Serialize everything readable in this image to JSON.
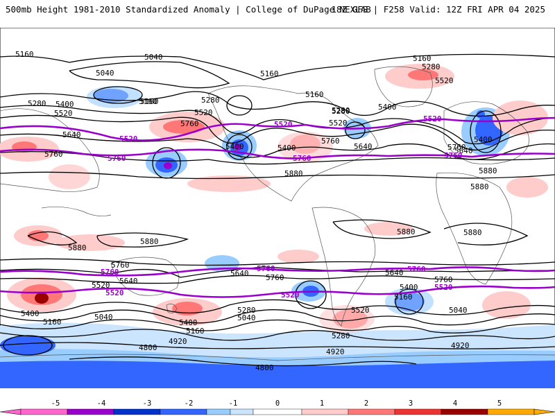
{
  "header": {
    "title_left": "500mb Height 1981-2010 Standardized Anomaly | College of DuPage NEXLAB",
    "title_right": "18Z GFS | F258 Valid: 12Z FRI APR 04 2025"
  },
  "colors": {
    "neg5": "#ff66cc",
    "neg4": "#9900cc",
    "neg3": "#0033cc",
    "neg2": "#3366ff",
    "neg1a": "#99ccff",
    "neg1b": "#cce5ff",
    "pos1": "#ffcccc",
    "pos2": "#ff7777",
    "pos3": "#ee3333",
    "pos4": "#990000",
    "pos5": "#ffaa00",
    "contour": "#000000",
    "highlight_contour": "#9900cc",
    "coast": "#666666"
  },
  "colorbar": {
    "ticks": [
      "-5",
      "-4",
      "-3",
      "-2",
      "-1",
      "0",
      "1",
      "2",
      "3",
      "4",
      "5"
    ]
  },
  "contour_labels": [
    {
      "id": "nh-5160-a",
      "text": "5160"
    },
    {
      "id": "nh-5040-a",
      "text": "5040"
    },
    {
      "id": "nh-5040-b",
      "text": "5040"
    },
    {
      "id": "nh-5160-b",
      "text": "5160"
    },
    {
      "id": "nh-5160-c",
      "text": "5160"
    },
    {
      "id": "nh-5280-a",
      "text": "5280"
    },
    {
      "id": "nh-5400-a",
      "text": "5400"
    },
    {
      "id": "nh-5520-a",
      "text": "5520"
    },
    {
      "id": "nh-5640-a",
      "text": "5640"
    },
    {
      "id": "nh-5760-a",
      "text": "5760"
    },
    {
      "id": "nh-5160-d",
      "text": "5160"
    },
    {
      "id": "nh-5280-b",
      "text": "5280"
    },
    {
      "id": "nh-5520-b",
      "text": "5520"
    },
    {
      "id": "nh-5760-b",
      "text": "5760"
    },
    {
      "id": "nh-5400-b",
      "text": "5400"
    },
    {
      "id": "nh-5280-c",
      "text": "5280"
    },
    {
      "id": "nh-5160-e",
      "text": "5160"
    },
    {
      "id": "nh-5280-d",
      "text": "5280"
    },
    {
      "id": "nh-5520-c",
      "text": "5520"
    },
    {
      "id": "nh-5400-c",
      "text": "5400"
    },
    {
      "id": "nh-5760-c",
      "text": "5760"
    },
    {
      "id": "nh-5640-b",
      "text": "5640"
    },
    {
      "id": "nh-5880-a",
      "text": "5880"
    },
    {
      "id": "nh-5160-f",
      "text": "5160"
    },
    {
      "id": "nh-5280-e",
      "text": "5280"
    },
    {
      "id": "nh-5520-d",
      "text": "5520"
    },
    {
      "id": "nh-5400-d",
      "text": "5400"
    },
    {
      "id": "nh-5400-e",
      "text": "5400"
    },
    {
      "id": "nh-5760-d",
      "text": "5760"
    },
    {
      "id": "nh-5640-c",
      "text": "5640"
    },
    {
      "id": "nh-5880-b",
      "text": "5880"
    },
    {
      "id": "nh-5880-c",
      "text": "5880"
    },
    {
      "id": "eq-5880-a",
      "text": "5880"
    },
    {
      "id": "eq-5880-b",
      "text": "5880"
    },
    {
      "id": "eq-5880-c",
      "text": "5880"
    },
    {
      "id": "eq-5880-d",
      "text": "5880"
    },
    {
      "id": "sh-5760-a",
      "text": "5760"
    },
    {
      "id": "sh-5640-a",
      "text": "5640"
    },
    {
      "id": "sh-5520-a",
      "text": "5520"
    },
    {
      "id": "sh-5400-a",
      "text": "5400"
    },
    {
      "id": "sh-5160-a",
      "text": "5160"
    },
    {
      "id": "sh-5040-a",
      "text": "5040"
    },
    {
      "id": "sh-5400-b",
      "text": "5400"
    },
    {
      "id": "sh-5160-b",
      "text": "5160"
    },
    {
      "id": "sh-5280-a",
      "text": "5280"
    },
    {
      "id": "sh-5040-b",
      "text": "5040"
    },
    {
      "id": "sh-5640-b",
      "text": "5640"
    },
    {
      "id": "sh-5760-b",
      "text": "5760"
    },
    {
      "id": "sh-5520-b",
      "text": "5520"
    },
    {
      "id": "sh-5280-b",
      "text": "5280"
    },
    {
      "id": "sh-4920-a",
      "text": "4920"
    },
    {
      "id": "sh-4920-b",
      "text": "4920"
    },
    {
      "id": "sh-4800-a",
      "text": "4800"
    },
    {
      "id": "sh-4800-b",
      "text": "4800"
    },
    {
      "id": "sh-5640-c",
      "text": "5640"
    },
    {
      "id": "sh-5760-c",
      "text": "5760"
    },
    {
      "id": "sh-5400-c",
      "text": "5400"
    },
    {
      "id": "sh-5160-c",
      "text": "5160"
    },
    {
      "id": "sh-5040-c",
      "text": "5040"
    },
    {
      "id": "sh-4920-c",
      "text": "4920"
    }
  ],
  "highlight_labels": [
    {
      "id": "hl-5520-a",
      "text": "5520"
    },
    {
      "id": "hl-5760-a",
      "text": "5760"
    },
    {
      "id": "hl-5520-b",
      "text": "5520"
    },
    {
      "id": "hl-5760-b",
      "text": "5760"
    },
    {
      "id": "hl-5520-c",
      "text": "5520"
    },
    {
      "id": "hl-5760-c",
      "text": "5760"
    },
    {
      "id": "hl-5760-d",
      "text": "5760"
    },
    {
      "id": "hl-5760-e",
      "text": "5760"
    },
    {
      "id": "hl-5760-f",
      "text": "5760"
    },
    {
      "id": "hl-5520-d",
      "text": "5520"
    },
    {
      "id": "hl-5520-e",
      "text": "5520"
    },
    {
      "id": "hl-5520-f",
      "text": "5520"
    }
  ]
}
